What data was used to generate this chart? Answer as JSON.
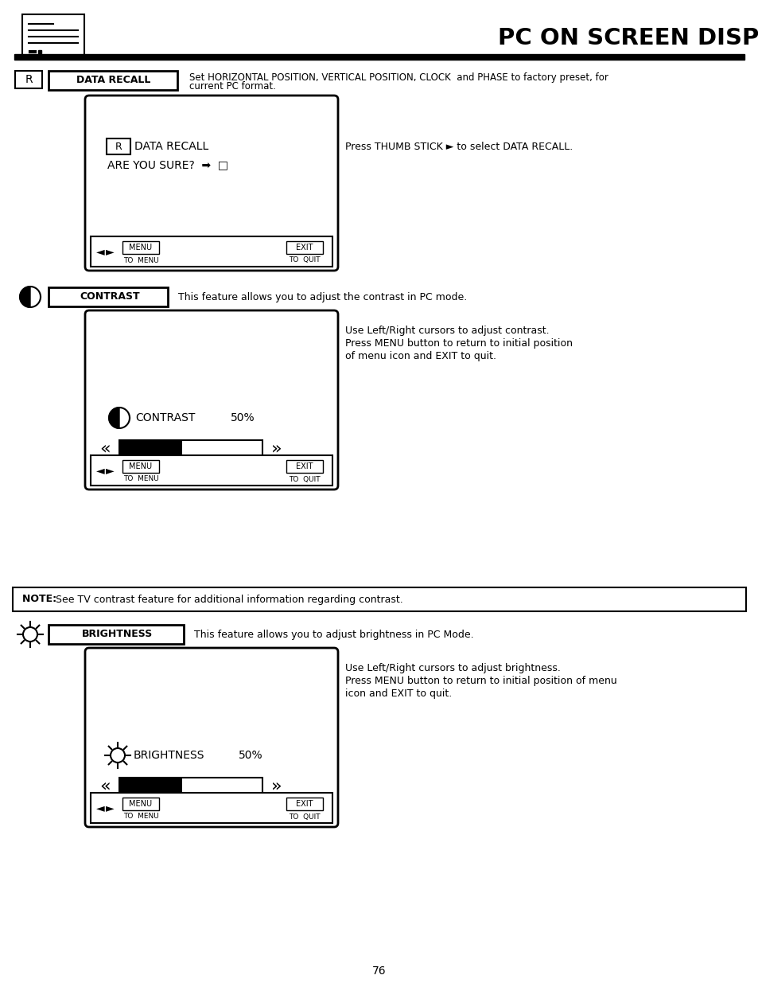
{
  "title": "PC ON SCREEN DISPLAY",
  "page_number": "76",
  "bg_color": "#ffffff",
  "section1": {
    "icon_label": "R",
    "label": "DATA RECALL",
    "description1": "Set HORIZONTAL POSITION, VERTICAL POSITION, CLOCK  and PHASE to factory preset, for",
    "description2": "current PC format.",
    "side_note": "Press THUMB STICK ► to select DATA RECALL."
  },
  "section2": {
    "label": "CONTRAST",
    "description": "This feature allows you to adjust the contrast in PC mode.",
    "side_note_lines": [
      "Use Left/Right cursors to adjust contrast.",
      "Press MENU button to return to initial position",
      "of menu icon and EXIT to quit."
    ],
    "box_label": "CONTRAST",
    "box_value": "50%"
  },
  "note_text1": "NOTE: ",
  "note_text2": "See TV contrast feature for additional information regarding contrast.",
  "section3": {
    "label": "BRIGHTNESS",
    "description": "This feature allows you to adjust brightness in PC Mode.",
    "side_note_lines": [
      "Use Left/Right cursors to adjust brightness.",
      "Press MENU button to return to initial position of menu",
      "icon and EXIT to quit."
    ],
    "box_label": "BRIGHTNESS",
    "box_value": "50%"
  }
}
